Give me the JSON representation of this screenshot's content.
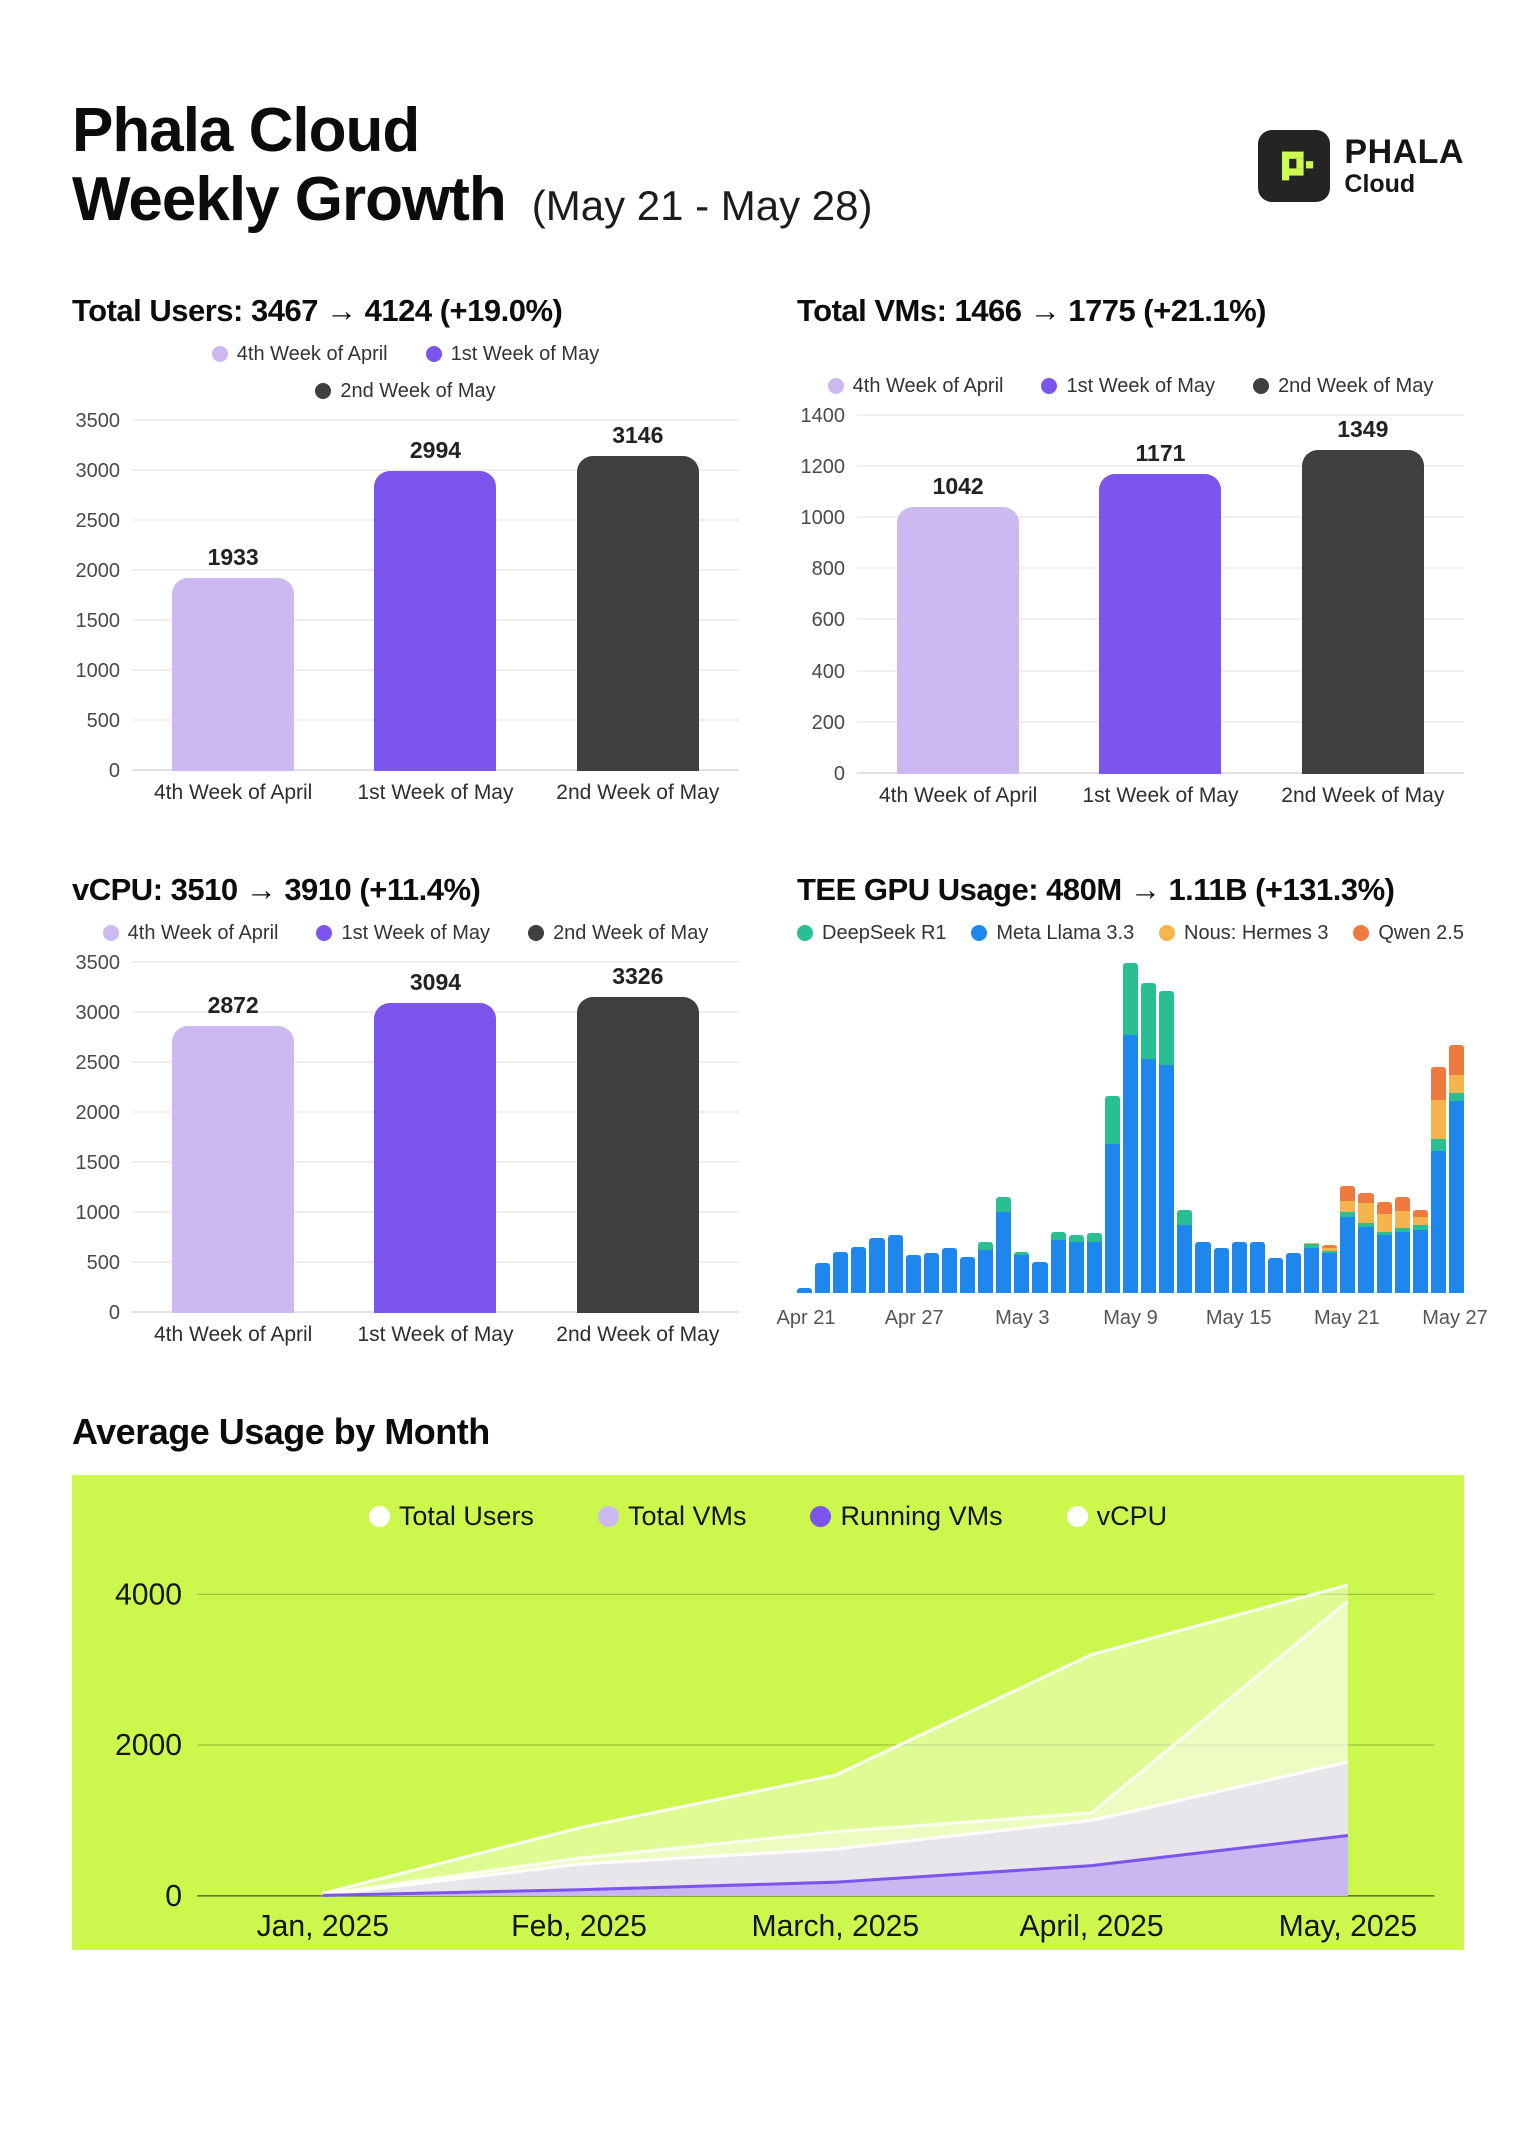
{
  "header": {
    "title_line1": "Phala Cloud",
    "title_line2": "Weekly Growth",
    "date_range": "(May 21 - May 28)"
  },
  "logo": {
    "brand": "PHALA",
    "product": "Cloud",
    "tile_bg": "#242424",
    "mark_color": "#cdfa50"
  },
  "palette": {
    "light_purple": "#cdb9f2",
    "purple": "#7c55ec",
    "dark_gray": "#3f3f3f",
    "blue": "#1e87ee",
    "teal": "#2abf92",
    "yellow": "#f5b44e",
    "orange": "#ee7a40",
    "lime": "#ccf84e"
  },
  "chart_data": [
    {
      "id": "total_users",
      "type": "bar",
      "title": "Total Users: 3467 → 4124 (+19.0%)",
      "legend": [
        {
          "label": "4th Week of April",
          "color": "#cdb9f2"
        },
        {
          "label": "1st Week of May",
          "color": "#7c55ec"
        },
        {
          "label": "2nd Week of May",
          "color": "#3f3f3f"
        }
      ],
      "categories": [
        "4th Week of April",
        "1st Week of May",
        "2nd Week of May"
      ],
      "values": [
        1933,
        2994,
        3146
      ],
      "bar_colors": [
        "#cdb9f2",
        "#7c55ec",
        "#3f3f3f"
      ],
      "ylim": [
        0,
        3500
      ],
      "ytick_step": 500
    },
    {
      "id": "total_vms",
      "type": "bar",
      "title": "Total VMs: 1466 → 1775 (+21.1%)",
      "legend": [
        {
          "label": "4th Week of April",
          "color": "#cdb9f2"
        },
        {
          "label": "1st Week of May",
          "color": "#7c55ec"
        },
        {
          "label": "2nd Week of May",
          "color": "#3f3f3f"
        }
      ],
      "categories": [
        "4th Week of April",
        "1st Week of May",
        "2nd Week of May"
      ],
      "values": [
        1042,
        1171,
        1349
      ],
      "bar_colors": [
        "#cdb9f2",
        "#7c55ec",
        "#3f3f3f"
      ],
      "ylim": [
        0,
        1400
      ],
      "ytick_step": 200
    },
    {
      "id": "vcpu",
      "type": "bar",
      "title": "vCPU: 3510 → 3910 (+11.4%)",
      "legend": [
        {
          "label": "4th Week of April",
          "color": "#cdb9f2"
        },
        {
          "label": "1st Week of May",
          "color": "#7c55ec"
        },
        {
          "label": "2nd Week of May",
          "color": "#3f3f3f"
        }
      ],
      "categories": [
        "4th Week of April",
        "1st Week of May",
        "2nd Week of May"
      ],
      "values": [
        2872,
        3094,
        3326
      ],
      "bar_colors": [
        "#cdb9f2",
        "#7c55ec",
        "#3f3f3f"
      ],
      "ylim": [
        0,
        3500
      ],
      "ytick_step": 500
    },
    {
      "id": "tee_gpu",
      "type": "stacked-bar",
      "title": "TEE GPU Usage: 480M → 1.11B (+131.3%)",
      "legend": [
        {
          "label": "DeepSeek R1",
          "color": "#2abf92"
        },
        {
          "label": "Meta Llama 3.3",
          "color": "#1e87ee"
        },
        {
          "label": "Nous: Hermes 3",
          "color": "#f5b44e"
        },
        {
          "label": "Qwen 2.5",
          "color": "#ee7a40"
        }
      ],
      "x_ticks": [
        "Apr 21",
        "Apr 27",
        "May 3",
        "May 9",
        "May 15",
        "May 21",
        "May 27"
      ],
      "tick_every": 6,
      "n_days": 37,
      "ylim_relative": [
        0,
        1000
      ],
      "series": [
        {
          "name": "Meta Llama 3.3",
          "color": "#1e87ee",
          "values_relative": [
            15,
            92,
            125,
            140,
            165,
            175,
            115,
            120,
            135,
            110,
            130,
            245,
            115,
            95,
            160,
            155,
            155,
            450,
            780,
            710,
            690,
            205,
            155,
            135,
            155,
            155,
            105,
            120,
            135,
            120,
            230,
            200,
            175,
            185,
            190,
            430,
            580
          ]
        },
        {
          "name": "DeepSeek R1",
          "color": "#2abf92",
          "values_relative": [
            0,
            0,
            0,
            0,
            0,
            0,
            0,
            0,
            0,
            0,
            25,
            45,
            8,
            0,
            25,
            20,
            25,
            148,
            220,
            230,
            225,
            45,
            0,
            0,
            0,
            0,
            0,
            0,
            12,
            8,
            15,
            12,
            10,
            12,
            15,
            35,
            25
          ]
        },
        {
          "name": "Nous: Hermes 3",
          "color": "#f5b44e",
          "values_relative": [
            0,
            0,
            0,
            0,
            0,
            0,
            0,
            0,
            0,
            0,
            0,
            0,
            0,
            0,
            0,
            0,
            0,
            0,
            0,
            0,
            0,
            0,
            0,
            0,
            0,
            0,
            0,
            0,
            5,
            8,
            35,
            60,
            55,
            50,
            25,
            120,
            55
          ]
        },
        {
          "name": "Qwen 2.5",
          "color": "#ee7a40",
          "values_relative": [
            0,
            0,
            0,
            0,
            0,
            0,
            0,
            0,
            0,
            0,
            0,
            0,
            0,
            0,
            0,
            0,
            0,
            0,
            0,
            0,
            0,
            0,
            0,
            0,
            0,
            0,
            0,
            0,
            0,
            8,
            45,
            30,
            35,
            45,
            20,
            100,
            90
          ]
        }
      ]
    },
    {
      "id": "monthly",
      "type": "area",
      "title": "Average Usage by Month",
      "panel_bg": "#ccf84e",
      "x": [
        "Jan, 2025",
        "Feb, 2025",
        "March, 2025",
        "April, 2025",
        "May, 2025"
      ],
      "y_ticks": [
        0,
        2000,
        4000
      ],
      "ylim": [
        0,
        4400
      ],
      "legend": [
        {
          "label": "Total Users",
          "color": "#ffffff"
        },
        {
          "label": "Total VMs",
          "color": "#cdb9f2"
        },
        {
          "label": "Running VMs",
          "color": "#7c55ec"
        },
        {
          "label": "vCPU",
          "color": "#ffffff"
        }
      ],
      "series": [
        {
          "name": "Total Users",
          "fill": "rgba(255,255,255,0.40)",
          "stroke": "rgba(255,255,255,0.90)",
          "values": [
            30,
            900,
            1600,
            3200,
            4124
          ]
        },
        {
          "name": "vCPU",
          "fill": "rgba(255,255,255,0.42)",
          "stroke": "rgba(255,255,255,0.85)",
          "values": [
            20,
            500,
            850,
            1100,
            3910
          ]
        },
        {
          "name": "Total VMs",
          "fill": "rgba(232,229,236,0.95)",
          "stroke": "#ffffff",
          "values": [
            10,
            420,
            620,
            1000,
            1775
          ]
        },
        {
          "name": "Running VMs",
          "fill": "rgba(198,180,240,0.95)",
          "stroke": "#7c55ec",
          "values": [
            5,
            80,
            180,
            400,
            800
          ]
        }
      ]
    }
  ]
}
